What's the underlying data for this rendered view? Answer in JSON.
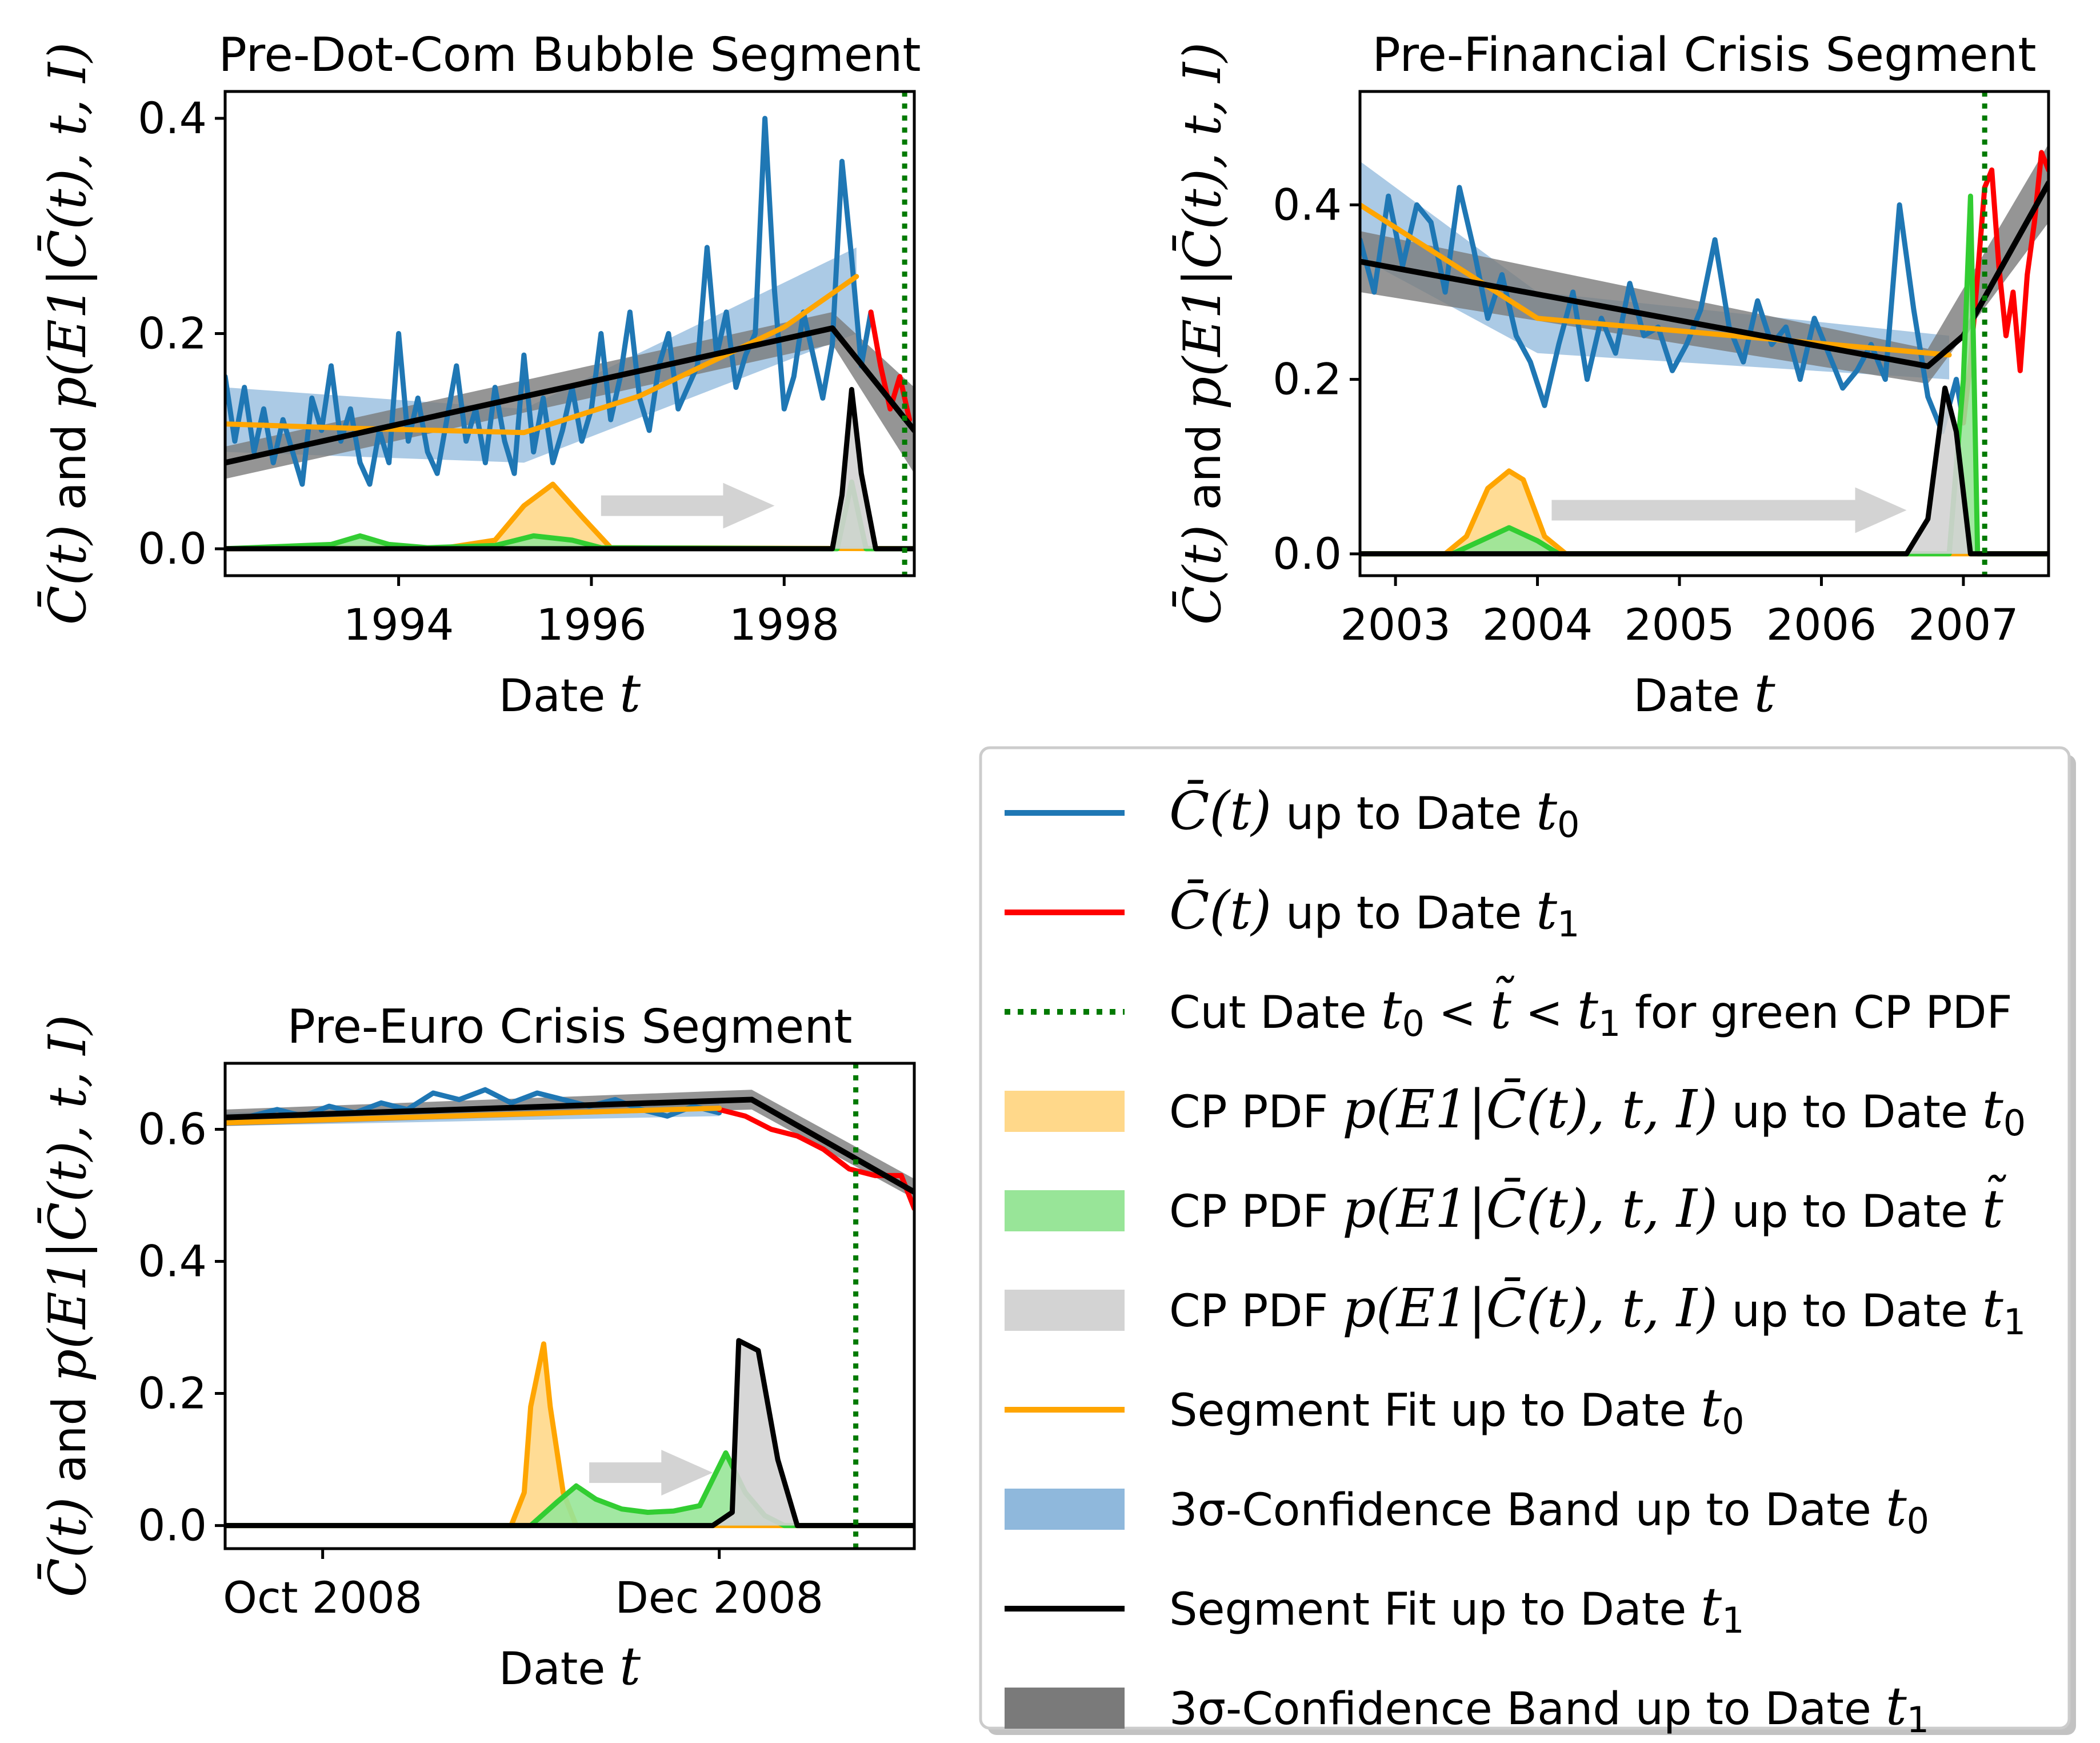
{
  "chart_data": [
    {
      "type": "line",
      "title": "Pre-Dot-Com Bubble Segment",
      "xlabel": "Date t",
      "ylabel": "C̄(t) and p(E1|C̄(t), t, I)",
      "x_unit": "year",
      "xlim": [
        1992.2,
        1999.35
      ],
      "ylim": [
        -0.025,
        0.425
      ],
      "xticks": [
        1994,
        1996,
        1998
      ],
      "xtick_labels": [
        "1994",
        "1996",
        "1998"
      ],
      "yticks": [
        0.0,
        0.2,
        0.4
      ],
      "ytick_labels": [
        "0.0",
        "0.2",
        "0.4"
      ],
      "cut_date": 1999.25,
      "arrow": {
        "from": 1996.1,
        "to": 1997.9,
        "y": 0.04
      },
      "series": {
        "observed_t0": {
          "x": [
            1992.2,
            1992.3,
            1992.4,
            1992.5,
            1992.6,
            1992.7,
            1992.8,
            1992.9,
            1993.0,
            1993.1,
            1993.2,
            1993.3,
            1993.4,
            1993.5,
            1993.6,
            1993.7,
            1993.8,
            1993.9,
            1994.0,
            1994.1,
            1994.2,
            1994.3,
            1994.4,
            1994.5,
            1994.6,
            1994.7,
            1994.8,
            1994.9,
            1995.0,
            1995.1,
            1995.2,
            1995.3,
            1995.4,
            1995.5,
            1995.6,
            1995.7,
            1995.8,
            1995.9,
            1996.0,
            1996.1,
            1996.2,
            1996.3,
            1996.4,
            1996.5,
            1996.6,
            1996.7,
            1996.8,
            1996.9,
            1997.0,
            1997.1,
            1997.2,
            1997.3,
            1997.4,
            1997.5,
            1997.6,
            1997.7,
            1997.8,
            1997.9,
            1998.0,
            1998.1,
            1998.2,
            1998.3,
            1998.4,
            1998.5,
            1998.6,
            1998.7,
            1998.8,
            1998.9
          ],
          "y": [
            0.16,
            0.1,
            0.15,
            0.09,
            0.13,
            0.08,
            0.12,
            0.09,
            0.06,
            0.14,
            0.11,
            0.17,
            0.1,
            0.13,
            0.08,
            0.06,
            0.11,
            0.08,
            0.2,
            0.1,
            0.14,
            0.09,
            0.07,
            0.12,
            0.17,
            0.1,
            0.13,
            0.08,
            0.15,
            0.1,
            0.07,
            0.18,
            0.09,
            0.14,
            0.08,
            0.11,
            0.15,
            0.1,
            0.13,
            0.2,
            0.12,
            0.16,
            0.22,
            0.14,
            0.11,
            0.17,
            0.2,
            0.13,
            0.15,
            0.17,
            0.28,
            0.18,
            0.22,
            0.15,
            0.18,
            0.2,
            0.4,
            0.24,
            0.13,
            0.16,
            0.22,
            0.18,
            0.14,
            0.19,
            0.36,
            0.27,
            0.17,
            0.22
          ]
        },
        "observed_t1": {
          "x": [
            1998.9,
            1999.0,
            1999.1,
            1999.2,
            1999.3
          ],
          "y": [
            0.22,
            0.17,
            0.13,
            0.16,
            0.12
          ]
        },
        "band_t0": {
          "x": [
            1992.2,
            1995.3,
            1998.75
          ],
          "lower": [
            0.09,
            0.08,
            0.2
          ],
          "upper": [
            0.15,
            0.13,
            0.28
          ]
        },
        "fit_t0": {
          "x": [
            1992.2,
            1993.5,
            1995.3,
            1996.5,
            1998.0,
            1998.75
          ],
          "y": [
            0.116,
            0.112,
            0.108,
            0.142,
            0.206,
            0.253
          ]
        },
        "band_t1": {
          "x": [
            1992.2,
            1998.5,
            1999.35
          ],
          "lower": [
            0.065,
            0.19,
            0.07
          ],
          "upper": [
            0.095,
            0.22,
            0.15
          ]
        },
        "fit_t1": {
          "x": [
            1992.2,
            1998.5,
            1999.35
          ],
          "y": [
            0.08,
            0.205,
            0.11
          ]
        },
        "cp_pdf_t0": {
          "x": [
            1992.2,
            1993.5,
            1994.5,
            1995.0,
            1995.3,
            1995.6,
            1995.9,
            1996.2,
            1999.35
          ],
          "y": [
            0,
            0.001,
            0.001,
            0.008,
            0.04,
            0.06,
            0.03,
            0.001,
            0
          ]
        },
        "cp_pdf_tilde": {
          "x": [
            1992.2,
            1993.3,
            1993.6,
            1993.9,
            1994.3,
            1995.0,
            1995.4,
            1995.8,
            1996.1,
            1998.55,
            1998.7,
            1998.85,
            1999.35
          ],
          "y": [
            0,
            0.004,
            0.012,
            0.004,
            0.001,
            0.003,
            0.012,
            0.008,
            0.001,
            0.0,
            0.062,
            0.0,
            0
          ]
        },
        "cp_pdf_t1": {
          "x": [
            1992.2,
            1998.5,
            1998.6,
            1998.7,
            1998.8,
            1998.95,
            1999.35
          ],
          "y": [
            0,
            0.0,
            0.05,
            0.148,
            0.07,
            0.0,
            0
          ]
        }
      }
    },
    {
      "type": "line",
      "title": "Pre-Financial Crisis Segment",
      "xlabel": "Date t",
      "ylabel": "C̄(t) and p(E1|C̄(t), t, I)",
      "x_unit": "year",
      "xlim": [
        2002.75,
        2007.6
      ],
      "ylim": [
        -0.025,
        0.53
      ],
      "xticks": [
        2003,
        2004,
        2005,
        2006,
        2007
      ],
      "xtick_labels": [
        "2003",
        "2004",
        "2005",
        "2006",
        "2007"
      ],
      "yticks": [
        0.0,
        0.2,
        0.4
      ],
      "ytick_labels": [
        "0.0",
        "0.2",
        "0.4"
      ],
      "cut_date": 2007.15,
      "arrow": {
        "from": 2004.1,
        "to": 2006.6,
        "y": 0.05
      },
      "series": {
        "observed_t0": {
          "x": [
            2002.75,
            2002.85,
            2002.95,
            2003.05,
            2003.15,
            2003.25,
            2003.35,
            2003.45,
            2003.55,
            2003.65,
            2003.75,
            2003.85,
            2003.95,
            2004.05,
            2004.15,
            2004.25,
            2004.35,
            2004.45,
            2004.55,
            2004.65,
            2004.75,
            2004.85,
            2004.95,
            2005.05,
            2005.15,
            2005.25,
            2005.35,
            2005.45,
            2005.55,
            2005.65,
            2005.75,
            2005.85,
            2005.95,
            2006.05,
            2006.15,
            2006.25,
            2006.35,
            2006.45,
            2006.55,
            2006.65,
            2006.75,
            2006.85,
            2006.95,
            2007.0
          ],
          "y": [
            0.36,
            0.3,
            0.41,
            0.33,
            0.4,
            0.38,
            0.3,
            0.42,
            0.35,
            0.27,
            0.32,
            0.25,
            0.22,
            0.17,
            0.24,
            0.3,
            0.2,
            0.27,
            0.23,
            0.31,
            0.25,
            0.26,
            0.21,
            0.24,
            0.28,
            0.36,
            0.26,
            0.22,
            0.29,
            0.24,
            0.26,
            0.2,
            0.27,
            0.23,
            0.19,
            0.21,
            0.24,
            0.2,
            0.4,
            0.28,
            0.18,
            0.14,
            0.2,
            0.15
          ]
        },
        "observed_t1": {
          "x": [
            2007.0,
            2007.05,
            2007.1,
            2007.15,
            2007.2,
            2007.25,
            2007.3,
            2007.35,
            2007.4,
            2007.45,
            2007.5,
            2007.55,
            2007.6
          ],
          "y": [
            0.15,
            0.22,
            0.32,
            0.42,
            0.44,
            0.33,
            0.25,
            0.3,
            0.21,
            0.32,
            0.38,
            0.46,
            0.44
          ]
        },
        "band_t0": {
          "x": [
            2002.75,
            2004.0,
            2006.9
          ],
          "lower": [
            0.34,
            0.23,
            0.2
          ],
          "upper": [
            0.45,
            0.3,
            0.25
          ]
        },
        "fit_t0": {
          "x": [
            2002.75,
            2004.0,
            2006.9
          ],
          "y": [
            0.4,
            0.27,
            0.228
          ]
        },
        "band_t1": {
          "x": [
            2002.75,
            2006.75,
            2007.6
          ],
          "lower": [
            0.3,
            0.195,
            0.38
          ],
          "upper": [
            0.37,
            0.235,
            0.47
          ]
        },
        "fit_t1": {
          "x": [
            2002.75,
            2006.75,
            2007.0,
            2007.6
          ],
          "y": [
            0.335,
            0.215,
            0.25,
            0.425
          ]
        },
        "cp_pdf_t0": {
          "x": [
            2002.75,
            2003.35,
            2003.5,
            2003.65,
            2003.8,
            2003.9,
            2004.05,
            2004.2,
            2007.6
          ],
          "y": [
            0,
            0.0,
            0.02,
            0.075,
            0.095,
            0.085,
            0.02,
            0.0,
            0
          ]
        },
        "cp_pdf_tilde": {
          "x": [
            2002.75,
            2003.4,
            2003.6,
            2003.8,
            2004.0,
            2004.15,
            2006.9,
            2007.0,
            2007.05,
            2007.1,
            2007.6
          ],
          "y": [
            0,
            0.0,
            0.015,
            0.03,
            0.015,
            0.0,
            0.0,
            0.2,
            0.41,
            0.0,
            0
          ]
        },
        "cp_pdf_t1": {
          "x": [
            2002.75,
            2006.6,
            2006.75,
            2006.87,
            2006.95,
            2007.05,
            2007.6
          ],
          "y": [
            0,
            0.0,
            0.04,
            0.19,
            0.14,
            0.0,
            0
          ]
        }
      }
    },
    {
      "type": "line",
      "title": "Pre-Euro Crisis Segment",
      "xlabel": "Date t",
      "ylabel": "C̄(t) and p(E1|C̄(t), t, I)",
      "x_unit": "date",
      "xlim": [
        "2008-09-16",
        "2008-12-31"
      ],
      "ylim": [
        -0.035,
        0.7
      ],
      "xticks": [
        "2008-10-01",
        "2008-12-01"
      ],
      "xtick_labels": [
        "Oct 2008",
        "Dec 2008"
      ],
      "yticks": [
        0.0,
        0.2,
        0.4,
        0.6
      ],
      "ytick_labels": [
        "0.0",
        "0.2",
        "0.4",
        "0.6"
      ],
      "cut_date": "2008-12-22",
      "arrow": {
        "from": "2008-11-11",
        "to": "2008-11-30",
        "y": 0.08
      },
      "series": {
        "observed_t0": {
          "x": [
            "2008-09-16",
            "2008-09-20",
            "2008-09-24",
            "2008-09-28",
            "2008-10-02",
            "2008-10-06",
            "2008-10-10",
            "2008-10-14",
            "2008-10-18",
            "2008-10-22",
            "2008-10-26",
            "2008-10-30",
            "2008-11-03",
            "2008-11-07",
            "2008-11-11",
            "2008-11-15",
            "2008-11-19",
            "2008-11-23",
            "2008-11-27",
            "2008-12-01"
          ],
          "y": [
            0.61,
            0.62,
            0.63,
            0.62,
            0.635,
            0.625,
            0.64,
            0.63,
            0.655,
            0.645,
            0.66,
            0.64,
            0.655,
            0.645,
            0.635,
            0.645,
            0.63,
            0.62,
            0.635,
            0.625
          ]
        },
        "observed_t1": {
          "x": [
            "2008-12-01",
            "2008-12-05",
            "2008-12-09",
            "2008-12-13",
            "2008-12-17",
            "2008-12-21",
            "2008-12-25",
            "2008-12-29",
            "2008-12-31"
          ],
          "y": [
            0.63,
            0.62,
            0.6,
            0.59,
            0.57,
            0.54,
            0.53,
            0.53,
            0.48
          ]
        },
        "band_t0": {
          "x": [
            "2008-09-16",
            "2008-12-01"
          ],
          "lower": [
            0.605,
            0.62
          ],
          "upper": [
            0.625,
            0.645
          ]
        },
        "fit_t0": {
          "x": [
            "2008-09-16",
            "2008-12-01"
          ],
          "y": [
            0.61,
            0.632
          ]
        },
        "band_t1": {
          "x": [
            "2008-09-16",
            "2008-12-06",
            "2008-12-31"
          ],
          "lower": [
            0.605,
            0.63,
            0.495
          ],
          "upper": [
            0.63,
            0.66,
            0.525
          ]
        },
        "fit_t1": {
          "x": [
            "2008-09-16",
            "2008-12-06",
            "2008-12-31"
          ],
          "y": [
            0.618,
            0.645,
            0.505
          ]
        },
        "cp_pdf_t0": {
          "x": [
            "2008-09-16",
            "2008-10-30",
            "2008-11-01",
            "2008-11-02",
            "2008-11-04",
            "2008-11-05",
            "2008-11-07",
            "2008-11-09",
            "2008-12-31"
          ],
          "y": [
            0,
            0.0,
            0.05,
            0.18,
            0.275,
            0.18,
            0.05,
            0.0,
            0
          ]
        },
        "cp_pdf_tilde": {
          "x": [
            "2008-09-16",
            "2008-11-02",
            "2008-11-06",
            "2008-11-09",
            "2008-11-12",
            "2008-11-16",
            "2008-11-20",
            "2008-11-24",
            "2008-11-28",
            "2008-12-02",
            "2008-12-05",
            "2008-12-08",
            "2008-12-11",
            "2008-12-31"
          ],
          "y": [
            0,
            0.0,
            0.035,
            0.06,
            0.04,
            0.025,
            0.02,
            0.022,
            0.03,
            0.11,
            0.05,
            0.015,
            0.0,
            0
          ]
        },
        "cp_pdf_t1": {
          "x": [
            "2008-09-16",
            "2008-11-30",
            "2008-12-03",
            "2008-12-04",
            "2008-12-07",
            "2008-12-10",
            "2008-12-13",
            "2008-12-31"
          ],
          "y": [
            0,
            0.0,
            0.02,
            0.28,
            0.265,
            0.1,
            0.0,
            0
          ]
        }
      }
    }
  ],
  "legend": {
    "entries": [
      {
        "kind": "line",
        "color": "#1f77b4",
        "tex": "C̄(t)  up to Date t0",
        "plain": [
          "",
          "  up to Date ",
          ""
        ],
        "math": [
          "C̄(t)",
          "t0"
        ]
      },
      {
        "kind": "line",
        "color": "#ff0000",
        "tex": "C̄(t) up to Date t1"
      },
      {
        "kind": "dotted",
        "color": "#007a00",
        "tex": "Cut Date t0 < t̃ < t1 for green CP PDF"
      },
      {
        "kind": "patch",
        "color": "#ffd88a",
        "tex": "CP PDF p(E1|C̄(t), t, I) up to Date t0"
      },
      {
        "kind": "patch",
        "color": "#98e598",
        "tex": "CP PDF p(E1|C̄(t), t, I) up to Date t̃"
      },
      {
        "kind": "patch",
        "color": "#d3d3d3",
        "tex": "CP PDF p(E1|C̄(t), t, I) up to Date t1"
      },
      {
        "kind": "line",
        "color": "#ffa500",
        "tex": "Segment Fit up to Date t0"
      },
      {
        "kind": "patch",
        "color": "#8fb8dc",
        "tex": "3σ-Confidence Band up to Date t0"
      },
      {
        "kind": "line",
        "color": "#000000",
        "tex": "Segment Fit up to Date t1"
      },
      {
        "kind": "patch",
        "color": "#7a7a7a",
        "tex": "3σ-Confidence Band up to Date t1"
      }
    ]
  },
  "colors": {
    "observed_t0": "#1f77b4",
    "observed_t1": "#ff0000",
    "cut_date": "#007a00",
    "cp_pdf_t0_fill": "#ffd88a",
    "cp_pdf_t0_line": "#ffa500",
    "cp_pdf_tilde_fill": "#98e598",
    "cp_pdf_tilde_line": "#32cd32",
    "cp_pdf_t1_fill": "#d3d3d3",
    "cp_pdf_t1_line": "#000000",
    "fit_t0": "#ffa500",
    "band_t0": "#8fb8dc",
    "fit_t1": "#000000",
    "band_t1": "#7a7a7a",
    "arrow": "#d3d3d3"
  }
}
